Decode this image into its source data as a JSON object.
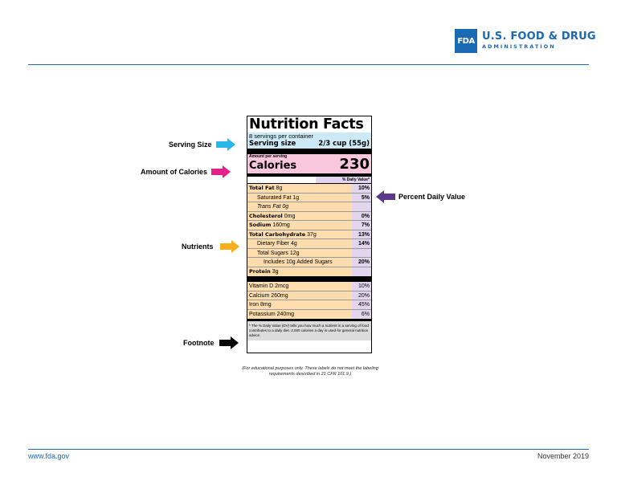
{
  "header": {
    "logo_box": "FDA",
    "logo_line1": "U.S. FOOD & DRUG",
    "logo_line2": "ADMINISTRATION",
    "brand_color": "#1a6ab3"
  },
  "callouts": {
    "serving_size": "Serving Size",
    "calories": "Amount of Calories",
    "nutrients": "Nutrients",
    "footnote": "Footnote",
    "percent_dv": "Percent Daily Value"
  },
  "label": {
    "title": "Nutrition Facts",
    "servings_per_container": "8 servings per container",
    "serving_size_label": "Serving size",
    "serving_size_value": "2/3 cup (55g)",
    "amount_per_serving": "Amount per serving",
    "calories_label": "Calories",
    "calories_value": "230",
    "dv_header": "% Daily Value*",
    "nutrients": [
      {
        "name": "Total Fat",
        "amount": "8g",
        "dv": "10%"
      },
      {
        "name": "Saturated Fat 1g",
        "amount": "",
        "dv": "5%"
      },
      {
        "name": "Trans Fat 0g",
        "amount": "",
        "dv": ""
      },
      {
        "name": "Cholesterol",
        "amount": "0mg",
        "dv": "0%"
      },
      {
        "name": "Sodium",
        "amount": "160mg",
        "dv": "7%"
      },
      {
        "name": "Total Carbohydrate",
        "amount": "37g",
        "dv": "13%"
      },
      {
        "name": "Dietary Fiber 4g",
        "amount": "",
        "dv": "14%"
      },
      {
        "name": "Total Sugars 12g",
        "amount": "",
        "dv": ""
      },
      {
        "name": "Includes 10g Added Sugars",
        "amount": "",
        "dv": "20%"
      },
      {
        "name": "Protein",
        "amount": "3g",
        "dv": ""
      }
    ],
    "vitamins": [
      {
        "name": "Vitamin D 2mcg",
        "dv": "10%"
      },
      {
        "name": "Calcium 260mg",
        "dv": "20%"
      },
      {
        "name": "Iron 8mg",
        "dv": "45%"
      },
      {
        "name": "Potassium 240mg",
        "dv": "6%"
      }
    ],
    "footnote": "* The % Daily Value (DV) tells you how much a nutrient in a serving of food contributes to a daily diet. 2,000 calories a day is used for general nutrition advice."
  },
  "edu_note": "(For educational purposes only. These labels do not meet the labeling requirements described in 21 CFR 101.9.)",
  "footer": {
    "website": "www.fda.gov",
    "date": "November 2019"
  },
  "colors": {
    "serving": "#cde9f6",
    "calories": "#f8c7dd",
    "nutrients": "#fddcae",
    "dv": "#e3d5ee",
    "footnote": "#dcdcdc",
    "arrow_serving": "#29b6e8",
    "arrow_calories": "#e6208a",
    "arrow_nutrients": "#f6ae1d",
    "arrow_footnote": "#000000",
    "arrow_dv": "#5b3a8e"
  }
}
